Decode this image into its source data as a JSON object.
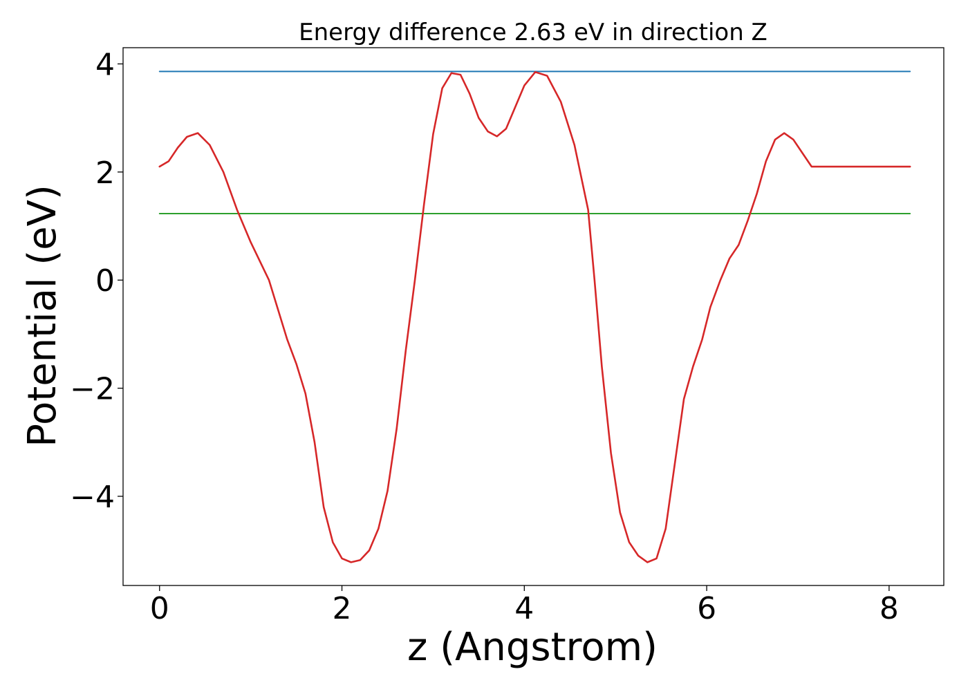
{
  "chart_data": {
    "type": "line",
    "title": "Energy difference 2.63 eV in direction Z",
    "xlabel": "z (Angstrom)",
    "ylabel": "Potential (eV)",
    "xlim": [
      -0.4,
      8.6
    ],
    "ylim": [
      -5.65,
      4.3
    ],
    "xticks": [
      0,
      2,
      4,
      6,
      8
    ],
    "xtick_labels": [
      "0",
      "2",
      "4",
      "6",
      "8"
    ],
    "yticks": [
      -4,
      -2,
      0,
      2,
      4
    ],
    "ytick_labels": [
      "−4",
      "−2",
      "0",
      "2",
      "4"
    ],
    "grid": false,
    "legend": "none",
    "series": [
      {
        "color": "#d62728",
        "x": [
          0,
          0.1,
          0.2,
          0.3,
          0.42,
          0.55,
          0.7,
          0.85,
          1.0,
          1.1,
          1.2,
          1.3,
          1.4,
          1.5,
          1.6,
          1.7,
          1.8,
          1.9,
          2.0,
          2.1,
          2.2,
          2.3,
          2.4,
          2.5,
          2.6,
          2.7,
          2.8,
          2.9,
          3.0,
          3.1,
          3.2,
          3.3,
          3.4,
          3.5,
          3.6,
          3.7,
          3.8,
          3.9,
          4.0,
          4.12,
          4.25,
          4.4,
          4.55,
          4.7,
          4.77,
          4.85,
          4.95,
          5.05,
          5.15,
          5.25,
          5.35,
          5.45,
          5.55,
          5.65,
          5.75,
          5.85,
          5.95,
          6.04,
          6.15,
          6.25,
          6.35,
          6.45,
          6.55,
          6.65,
          6.75,
          6.85,
          6.95,
          7.05,
          7.15,
          7.25,
          7.4,
          7.55,
          7.7,
          7.83,
          7.95,
          8.05,
          8.15,
          8.23
        ],
        "y": [
          2.1,
          2.2,
          2.45,
          2.65,
          2.72,
          2.5,
          2.0,
          1.3,
          0.7,
          0.35,
          0.0,
          -0.55,
          -1.1,
          -1.55,
          -2.1,
          -3.0,
          -4.2,
          -4.85,
          -5.15,
          -5.22,
          -5.18,
          -5.0,
          -4.6,
          -3.9,
          -2.75,
          -1.3,
          0.0,
          1.4,
          2.7,
          3.55,
          3.83,
          3.8,
          3.45,
          3.0,
          2.75,
          2.66,
          2.8,
          3.2,
          3.6,
          3.85,
          3.78,
          3.3,
          2.5,
          1.3,
          0.0,
          -1.6,
          -3.2,
          -4.3,
          -4.85,
          -5.1,
          -5.22,
          -5.15,
          -4.6,
          -3.4,
          -2.2,
          -1.6,
          -1.1,
          -0.5,
          0.0,
          0.4,
          0.65,
          1.1,
          1.6,
          2.2,
          2.6,
          2.72,
          2.6,
          2.35,
          2.1,
          2.1,
          2.1,
          2.1,
          2.1,
          2.1,
          2.1,
          2.1,
          2.1,
          2.1
        ]
      },
      {
        "color": "#1f77b4",
        "x": [
          0,
          8.23
        ],
        "y": [
          3.86,
          3.86
        ]
      },
      {
        "color": "#2ca02c",
        "x": [
          0,
          8.23
        ],
        "y": [
          1.23,
          1.23
        ]
      }
    ]
  }
}
